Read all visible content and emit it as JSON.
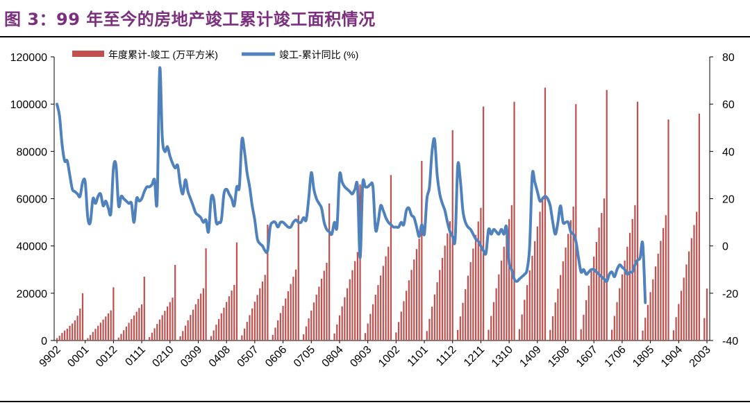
{
  "figure": {
    "title": "图 3：99 年至今的房地产竣工累计竣工面积情况"
  },
  "colors": {
    "title": "#7b2f7e",
    "bar": "#c0504d",
    "line": "#4f81bd"
  },
  "chart_data": {
    "type": "bar+line",
    "title": "",
    "xlabel": "",
    "ylabel": "",
    "y_left_range": [
      0,
      120000
    ],
    "y_left_ticks": [
      0,
      20000,
      40000,
      60000,
      80000,
      100000,
      120000
    ],
    "y_right_range": [
      -40,
      80
    ],
    "y_right_ticks": [
      -40,
      -20,
      0,
      20,
      40,
      60,
      80
    ],
    "x_tick_labels": [
      "9902",
      "0001",
      "0012",
      "0111",
      "0210",
      "0309",
      "0408",
      "0507",
      "0606",
      "0705",
      "0804",
      "0903",
      "1002",
      "1101",
      "1112",
      "1211",
      "1310",
      "1409",
      "1508",
      "1607",
      "1706",
      "1805",
      "1904",
      "2003"
    ],
    "legend_position": "top-left",
    "grid": false,
    "start_period": "1999-02",
    "end_period": "2020-03",
    "year_end_bar_values": [
      {
        "year": "1999",
        "value": 20000
      },
      {
        "year": "2000",
        "value": 22500
      },
      {
        "year": "2001",
        "value": 27000
      },
      {
        "year": "2002",
        "value": 32000
      },
      {
        "year": "2003",
        "value": 39000
      },
      {
        "year": "2004",
        "value": 41500
      },
      {
        "year": "2005",
        "value": 49000
      },
      {
        "year": "2006",
        "value": 53000
      },
      {
        "year": "2007",
        "value": 58000
      },
      {
        "year": "2008",
        "value": 66000
      },
      {
        "year": "2009",
        "value": 70000
      },
      {
        "year": "2010",
        "value": 76000
      },
      {
        "year": "2011",
        "value": 89000
      },
      {
        "year": "2012",
        "value": 99000
      },
      {
        "year": "2013",
        "value": 101000
      },
      {
        "year": "2014",
        "value": 107000
      },
      {
        "year": "2015",
        "value": 100000
      },
      {
        "year": "2016",
        "value": 106000
      },
      {
        "year": "2017",
        "value": 101000
      },
      {
        "year": "2018",
        "value": 93500
      },
      {
        "year": "2019",
        "value": 96000
      }
    ],
    "series": [
      {
        "name": "年度累计-竣工 (万平方米)",
        "type": "bar",
        "axis": "left",
        "color": "#c0504d",
        "first_year_months": [
          [
            2,
            1000
          ],
          [
            3,
            2000
          ],
          [
            4,
            3200
          ],
          [
            5,
            4200
          ],
          [
            6,
            5000
          ],
          [
            7,
            6200
          ],
          [
            8,
            7200
          ],
          [
            9,
            8500
          ],
          [
            10,
            10500
          ],
          [
            11,
            13500
          ],
          [
            12,
            20000
          ]
        ],
        "last_year_months": [
          [
            2,
            9500
          ],
          [
            3,
            22000
          ]
        ]
      },
      {
        "name": "竣工-累计同比 (%)",
        "type": "line",
        "axis": "right",
        "color": "#4f81bd",
        "values": [
          60,
          55,
          43,
          36,
          36,
          30,
          24,
          23,
          22,
          21,
          27,
          27,
          12,
          10,
          20,
          18,
          21,
          22,
          17,
          19,
          16,
          14,
          33,
          34,
          17,
          21,
          20,
          19,
          18,
          18,
          10,
          20,
          19,
          20,
          23,
          25,
          25,
          26,
          28,
          19,
          75,
          46,
          40,
          42,
          38,
          35,
          33,
          34,
          26,
          22,
          28,
          23,
          20,
          17,
          14,
          13,
          12,
          10,
          11,
          6,
          20,
          20,
          10,
          10,
          11,
          22,
          24,
          22,
          20,
          17,
          25,
          25,
          45,
          40,
          31,
          25,
          17,
          11,
          3,
          1,
          0,
          -2,
          -2,
          8,
          10,
          10,
          8,
          10,
          10,
          9,
          8,
          8,
          10,
          11,
          10,
          10,
          12,
          11,
          20,
          31,
          24,
          20,
          18,
          16,
          10,
          7,
          6,
          5,
          10,
          8,
          30,
          27,
          25,
          24,
          23,
          22,
          24,
          25,
          -5,
          26,
          25,
          25,
          26,
          25,
          7,
          10,
          17,
          15,
          12,
          10,
          9,
          8,
          8,
          8,
          10,
          9,
          15,
          16,
          13,
          12,
          8,
          4,
          9,
          5,
          20,
          25,
          40,
          45,
          30,
          22,
          18,
          15,
          10,
          6,
          4,
          3,
          34,
          28,
          15,
          10,
          8,
          7,
          5,
          3,
          2,
          0,
          -2,
          -3,
          7,
          5,
          7,
          6,
          5,
          7,
          5,
          8,
          -7,
          -10,
          -14,
          -15,
          -14,
          -13,
          -12,
          -10,
          0,
          30,
          27,
          23,
          19,
          20,
          21,
          20,
          17,
          10,
          5,
          10,
          17,
          10,
          10,
          10,
          6,
          5,
          2,
          -5,
          -11,
          -10,
          -12,
          -11,
          -10,
          -10,
          -11,
          -12,
          -13,
          -14,
          -15,
          -12,
          -11,
          -13,
          -10,
          -8,
          -9,
          -10,
          -12,
          -11,
          -11,
          -8,
          -6,
          -5,
          1,
          -24
        ]
      }
    ]
  }
}
